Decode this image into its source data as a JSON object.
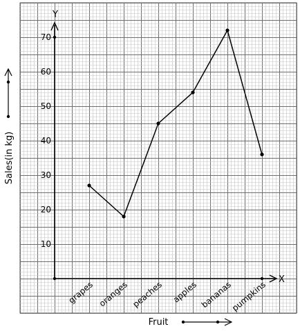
{
  "chart_data": {
    "type": "line",
    "xlabel": "Fruit",
    "ylabel": "Sales(in kg)",
    "x_axis_letter": "X",
    "y_axis_letter": "Y",
    "categories": [
      "grapes",
      "oranges",
      "peaches",
      "apples",
      "bananas",
      "pumpkins"
    ],
    "values": [
      27,
      18,
      45,
      54,
      72,
      36
    ],
    "ylim": [
      0,
      70
    ],
    "yticks": [
      "10",
      "20",
      "30",
      "40",
      "50",
      "60",
      "70"
    ],
    "grid": true,
    "line_color": "#000000",
    "grid_color": "#9a9a9a"
  }
}
